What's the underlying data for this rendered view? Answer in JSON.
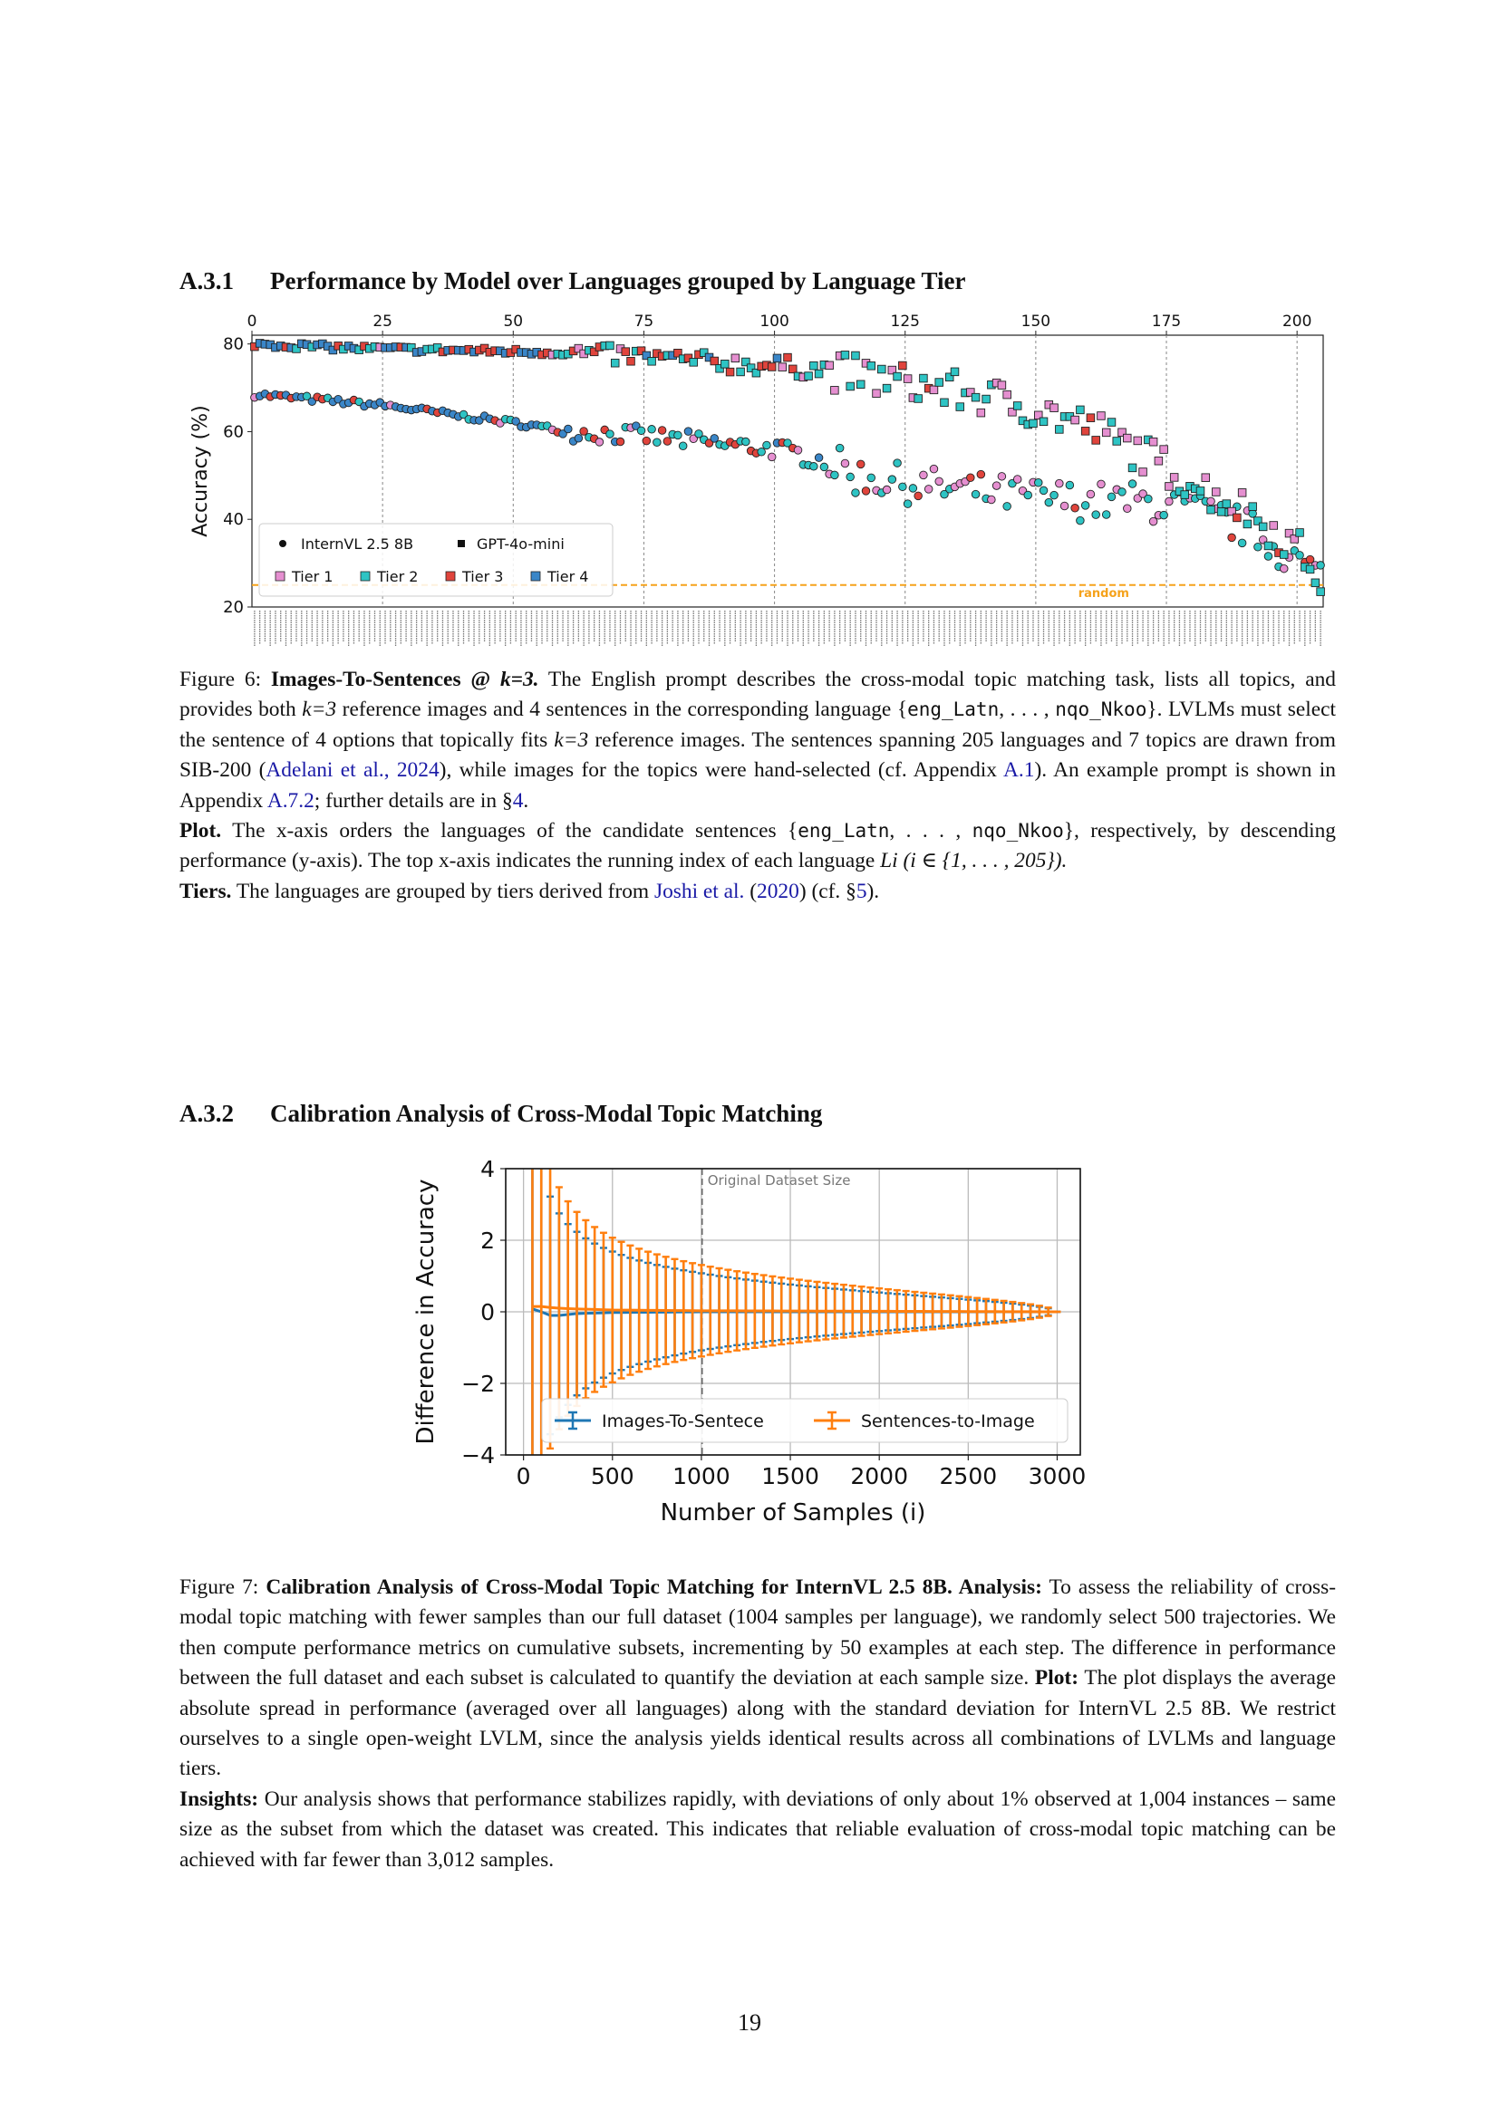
{
  "section_a31": {
    "number": "A.3.1",
    "title": "Performance by Model over Languages grouped by Language Tier"
  },
  "section_a32": {
    "number": "A.3.2",
    "title": "Calibration Analysis of Cross-Modal Topic Matching"
  },
  "page_number": "19",
  "colors": {
    "tier1": "#e58fd0",
    "tier2": "#2ec4c4",
    "tier3": "#e0443c",
    "tier4": "#3a86c8",
    "random": "#f5a21b",
    "blue_series": "#1f77b4",
    "orange_series": "#ff7f0e"
  },
  "fig6": {
    "caption_parts": {
      "label": "Figure 6: ",
      "title": "Images-To-Sentences @ ",
      "title_k": "k=3.",
      "t1": " The English prompt describes the cross-modal topic matching task, lists all topics, and provides both ",
      "t1k": "k=3",
      "t2": " reference images and 4 sentences in the corresponding language {",
      "code1": "eng_Latn",
      "t3": ", . . . , ",
      "code2": "nqo_Nkoo",
      "t4": "}. LVLMs must select the sentence of 4 options that topically fits ",
      "t4k": "k=3",
      "t5": " reference images. The sentences spanning 205 languages and 7 topics are drawn from SIB-200 (",
      "cite1": "Adelani et al., 2024",
      "t6": "), while images for the topics were hand-selected (cf. Appendix ",
      "ref1": "A.1",
      "t7": "). An example prompt is shown in Appendix ",
      "ref2": "A.7.2",
      "t8": "; further details are in §",
      "ref3": "4",
      "t9": ".",
      "plot_label": "Plot.",
      "t10": " The x-axis orders the languages of the candidate sentences {",
      "code3": "eng_Latn",
      "t11": ", . . . , ",
      "code4": "nqo_Nkoo",
      "t12": "}, respectively, by descending performance (y-axis). The top x-axis indicates the running index of each language ",
      "t12m": "Li (i ∈ {1, . . . , 205}).",
      "tiers_label": "Tiers.",
      "t13": " The languages are grouped by tiers derived from ",
      "cite2": "Joshi et al.",
      "t14": " (",
      "cite2y": "2020",
      "t15": ") (cf. §",
      "ref4": "5",
      "t16": ")."
    }
  },
  "fig7": {
    "caption_parts": {
      "label": "Figure 7: ",
      "title": "Calibration Analysis of Cross-Modal Topic Matching for InternVL 2.5 8B.",
      "analysis_label": " Analysis:",
      "t1": " To assess the reliability of cross-modal topic matching with fewer samples than our full dataset (1004 samples per language), we randomly select 500 trajectories. We then compute performance metrics on cumulative subsets, incrementing by 50 examples at each step. The difference in performance between the full dataset and each subset is calculated to quantify the deviation at each sample size.",
      "plot_label": " Plot:",
      "t2": " The plot displays the average absolute spread in performance (averaged over all languages) along with the standard deviation for InternVL 2.5 8B. We restrict ourselves to a single open-weight LVLM, since the analysis yields identical results across all combinations of LVLMs and language tiers.",
      "insights_label": " Insights:",
      "t3": " Our analysis shows that performance stabilizes rapidly, with deviations of only about 1% observed at 1,004 instances – same size as the subset from which the dataset was created. This indicates that reliable evaluation of cross-modal topic matching can be achieved with far fewer than 3,012 samples."
    }
  },
  "chart_data": [
    {
      "type": "scatter",
      "ylabel": "Accuracy (%)",
      "ylim": [
        20,
        82
      ],
      "xlim": [
        0,
        205
      ],
      "top_ticks": [
        "0",
        "25",
        "50",
        "75",
        "100",
        "125",
        "150",
        "175",
        "200"
      ],
      "yticks": [
        "20",
        "40",
        "60",
        "80"
      ],
      "random_label": "random",
      "random_value": 25,
      "legend_models": [
        "InternVL 2.5 8B",
        "GPT-4o-mini"
      ],
      "legend_tiers": [
        "Tier 1",
        "Tier 2",
        "Tier 3",
        "Tier 4"
      ],
      "legend_position": "bottom-left",
      "grid": "vertical dashed at top ticks",
      "n_languages": 205,
      "series": [
        {
          "name": "InternVL 2.5 8B",
          "marker": "circle",
          "anchors_x": [
            0,
            10,
            25,
            40,
            50,
            60,
            75,
            90,
            100,
            110,
            115,
            125,
            140,
            150,
            160,
            170,
            180,
            190,
            200,
            205
          ],
          "anchors_y": [
            68.5,
            67.5,
            66,
            63.5,
            62,
            60,
            59,
            57,
            56,
            53,
            50,
            48,
            46,
            45,
            44,
            44,
            42,
            38,
            30,
            26
          ]
        },
        {
          "name": "GPT-4o-mini",
          "marker": "square",
          "anchors_x": [
            0,
            20,
            40,
            60,
            75,
            85,
            100,
            110,
            125,
            140,
            150,
            160,
            170,
            180,
            190,
            200,
            205
          ],
          "anchors_y": [
            80,
            79,
            78.5,
            78,
            77,
            76,
            75,
            74,
            71,
            68,
            65,
            61,
            55,
            48,
            42,
            33,
            25
          ]
        }
      ]
    },
    {
      "type": "line",
      "xlabel": "Number of Samples (i)",
      "ylabel": "Difference in Accuracy",
      "xlim": [
        -100,
        3130
      ],
      "ylim": [
        -4,
        4
      ],
      "xticks": [
        "0",
        "500",
        "1000",
        "1500",
        "2000",
        "2500",
        "3000"
      ],
      "yticks": [
        "−4",
        "−2",
        "0",
        "2",
        "4"
      ],
      "annotation": "Original Dataset Size",
      "annotation_x": 1004,
      "legend_position": "lower-right",
      "grid": true,
      "x_start": 50,
      "x_step": 50,
      "x_end": 3000,
      "series": [
        {
          "name": "Images-To-Sentece",
          "mean_anchor_x": [
            50,
            100,
            150,
            200,
            300,
            500,
            1000,
            3000
          ],
          "mean_anchor_y": [
            0.08,
            0.0,
            -0.1,
            -0.1,
            -0.05,
            -0.02,
            0.0,
            0.0
          ],
          "std_scale": 5.9
        },
        {
          "name": "Sentences-to-Image",
          "mean_anchor_x": [
            50,
            100,
            150,
            200,
            300,
            500,
            1000,
            3000
          ],
          "mean_anchor_y": [
            0.15,
            0.15,
            0.12,
            0.1,
            0.08,
            0.05,
            0.03,
            0.0
          ],
          "std_scale": 7.0
        }
      ]
    }
  ]
}
